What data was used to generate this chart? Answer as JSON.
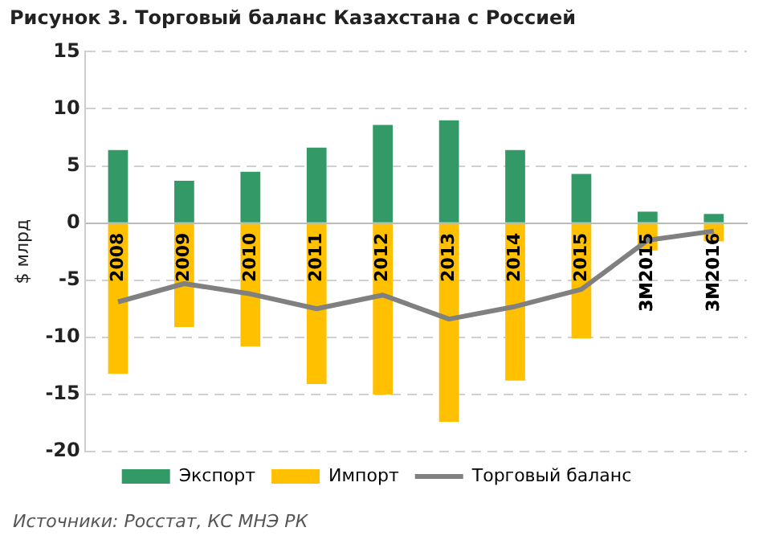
{
  "chart_data": {
    "type": "bar",
    "title": "Рисунок 3.  Торговый баланс Казахстана с Россией",
    "ylabel": "$ млрд",
    "categories": [
      "2008",
      "2009",
      "2010",
      "2011",
      "2012",
      "2013",
      "2014",
      "2015",
      "3M2015",
      "3M2016"
    ],
    "series": [
      {
        "name": "Экспорт",
        "color": "#339966",
        "values": [
          6.4,
          3.7,
          4.5,
          6.6,
          8.6,
          9.0,
          6.4,
          4.3,
          1.0,
          0.8
        ]
      },
      {
        "name": "Импорт",
        "color": "#ffc000",
        "values": [
          -13.2,
          -9.1,
          -10.8,
          -14.1,
          -15.0,
          -17.4,
          -13.8,
          -10.1,
          -2.4,
          -1.6
        ]
      },
      {
        "name": "Торговый баланс",
        "type": "line",
        "color": "#808080",
        "values": [
          -6.9,
          -5.3,
          -6.2,
          -7.5,
          -6.3,
          -8.4,
          -7.3,
          -5.8,
          -1.5,
          -0.7
        ]
      }
    ],
    "stacked": true,
    "ylim": [
      -20,
      15
    ],
    "yticks": [
      -20,
      -15,
      -10,
      -5,
      0,
      5,
      10,
      15
    ],
    "grid": "y",
    "legend": "bottom",
    "marker": "none",
    "annotations": [
      "Источники: Росстат, КС МНЭ РК"
    ]
  }
}
